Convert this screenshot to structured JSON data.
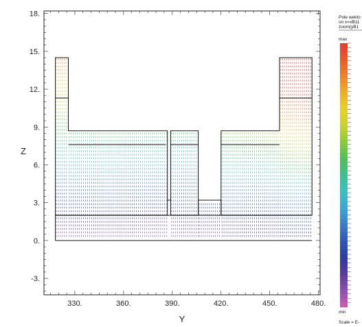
{
  "chart_data": {
    "type": "vector-field",
    "xlabel": "Y",
    "ylabel": "Z",
    "xlim": [
      311,
      481
    ],
    "ylim": [
      -4.3,
      18.2
    ],
    "x_ticks": [
      330,
      360,
      390,
      420,
      450,
      480
    ],
    "x_tick_labels": [
      "330.",
      "360.",
      "390.",
      "420.",
      "450.",
      "480."
    ],
    "y_ticks": [
      -3,
      0,
      3,
      6,
      9,
      12,
      15,
      18
    ],
    "y_tick_labels": [
      "-3.",
      "0.",
      "3.",
      "6.",
      "9.",
      "12.",
      "15.",
      "18."
    ],
    "grid": false,
    "legend": {
      "title_lines": [
        "Pole wekto",
        "on x=xB11",
        "zoom(yB1"
      ],
      "max_label": "max",
      "min_label": "min",
      "scale_label": "Scale = E-"
    },
    "colormap": [
      "#d25ab4",
      "#8a4fb0",
      "#5a3aa0",
      "#2c3c9e",
      "#2f56b5",
      "#3a7ec8",
      "#3ba6d6",
      "#3cc0c4",
      "#3fbf8f",
      "#4fbf55",
      "#8acb3a",
      "#c8d230",
      "#e8cf2c",
      "#f0ae2a",
      "#ee812a",
      "#ea5a2a",
      "#e63a2c"
    ],
    "structure_lines": [
      {
        "x": [
          318,
          318,
          326,
          326,
          387,
          387,
          318
        ],
        "y": [
          0,
          14.5,
          14.5,
          8.7,
          8.7,
          2.0,
          2.0
        ]
      },
      {
        "x": [
          318,
          326
        ],
        "y": [
          11.3,
          11.3
        ]
      },
      {
        "x": [
          326,
          386
        ],
        "y": [
          7.6,
          7.6
        ]
      },
      {
        "x": [
          389,
          389,
          406,
          406,
          389
        ],
        "y": [
          2.0,
          8.7,
          8.7,
          2.0,
          2.0
        ]
      },
      {
        "x": [
          389,
          406
        ],
        "y": [
          7.6,
          7.6
        ]
      },
      {
        "x": [
          387,
          389
        ],
        "y": [
          3.2,
          3.2
        ]
      },
      {
        "x": [
          406,
          406,
          420,
          420
        ],
        "y": [
          2.0,
          3.2,
          3.2,
          2.0
        ]
      },
      {
        "x": [
          420,
          420,
          456,
          456,
          476,
          476,
          420
        ],
        "y": [
          2.0,
          8.7,
          8.7,
          14.5,
          14.5,
          2.0,
          2.0
        ]
      },
      {
        "x": [
          420,
          456
        ],
        "y": [
          7.6,
          7.6
        ]
      },
      {
        "x": [
          456,
          476
        ],
        "y": [
          11.3,
          11.3
        ]
      },
      {
        "x": [
          318,
          476
        ],
        "y": [
          2.0,
          2.0
        ]
      },
      {
        "x": [
          318,
          476
        ],
        "y": [
          0.0,
          0.0
        ]
      }
    ]
  }
}
